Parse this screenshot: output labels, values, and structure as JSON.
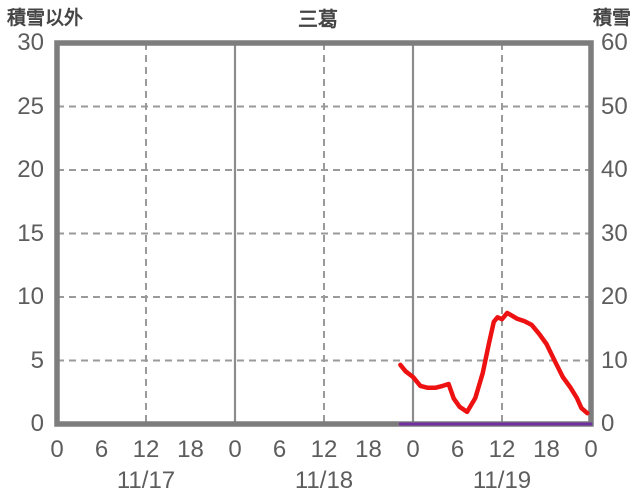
{
  "header": {
    "left_label": "積雪以外",
    "title": "三葛",
    "right_label": "積雪"
  },
  "colors": {
    "snow_line": "#ee1111",
    "other_line": "#7030a0",
    "border": "#7d7d7d",
    "grid_dashed": "#9a9a9a",
    "grid_solid": "#8c8c8c",
    "tick_text": "#5d5d5d",
    "header_text": "#454545"
  },
  "chart_data": {
    "type": "line",
    "title": "三葛",
    "grid": true,
    "left_axis": {
      "label": "積雪以外",
      "min": 0,
      "max": 30,
      "ticks": [
        30,
        25,
        20,
        15,
        10,
        5,
        0
      ]
    },
    "right_axis": {
      "label": "積雪",
      "min": 0,
      "max": 60,
      "ticks": [
        60,
        50,
        40,
        30,
        20,
        10,
        0
      ]
    },
    "x_axis": {
      "dates": [
        "11/17",
        "11/18",
        "11/19"
      ],
      "hour_tick_labels": [
        "0",
        "6",
        "12",
        "18",
        "0",
        "6",
        "12",
        "18",
        "0",
        "6",
        "12",
        "18",
        "0"
      ],
      "hours_total": 72,
      "solid_gridline_hours": [
        24,
        48
      ],
      "dashed_gridline_hours": [
        12,
        36,
        60
      ]
    },
    "series": [
      {
        "name": "積雪",
        "axis": "right",
        "color": "#ee1111",
        "width": 4.5,
        "points": [
          [
            46.3,
            9.3
          ],
          [
            47.0,
            8.3
          ],
          [
            48.0,
            7.4
          ],
          [
            49.0,
            6.0
          ],
          [
            50.0,
            5.7
          ],
          [
            51.0,
            5.7
          ],
          [
            52.0,
            6.0
          ],
          [
            52.8,
            6.3
          ],
          [
            53.5,
            4.0
          ],
          [
            54.3,
            2.7
          ],
          [
            55.3,
            1.9
          ],
          [
            56.4,
            4.1
          ],
          [
            57.4,
            8.0
          ],
          [
            58.2,
            12.5
          ],
          [
            58.9,
            16.1
          ],
          [
            59.4,
            16.8
          ],
          [
            60.0,
            16.5
          ],
          [
            60.7,
            17.5
          ],
          [
            61.3,
            17.1
          ],
          [
            62.0,
            16.6
          ],
          [
            63.0,
            16.2
          ],
          [
            64.0,
            15.6
          ],
          [
            65.0,
            14.2
          ],
          [
            66.0,
            12.6
          ],
          [
            67.0,
            10.2
          ],
          [
            68.2,
            7.4
          ],
          [
            69.2,
            5.8
          ],
          [
            70.1,
            4.1
          ],
          [
            70.7,
            2.5
          ],
          [
            71.5,
            1.7
          ]
        ]
      },
      {
        "name": "積雪以外",
        "axis": "left",
        "color": "#7030a0",
        "width": 3,
        "points": [
          [
            46.3,
            0
          ],
          [
            72,
            0
          ]
        ]
      }
    ]
  }
}
